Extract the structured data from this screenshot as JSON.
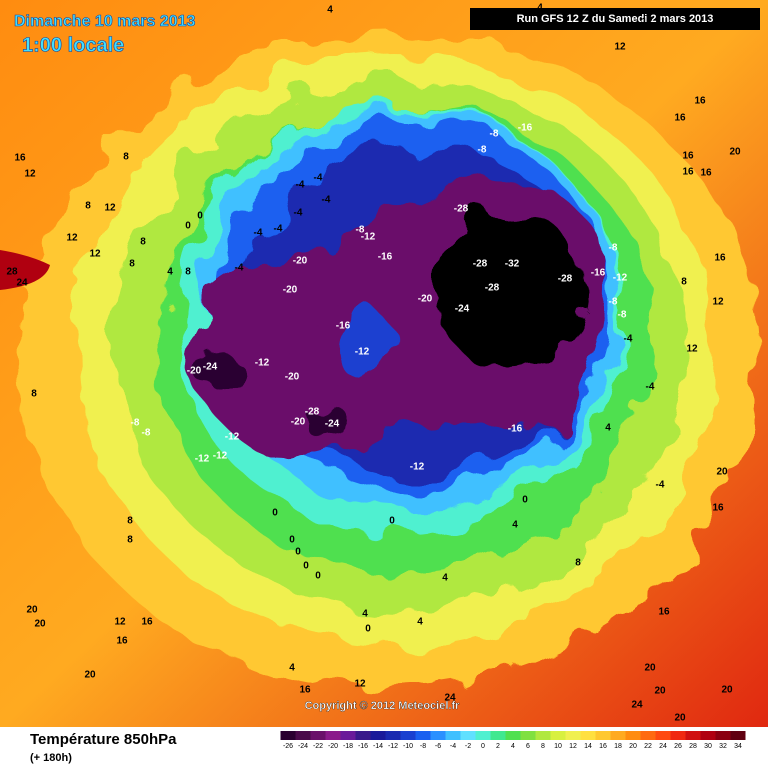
{
  "header": {
    "date": "Dimanche 10 mars 2013",
    "time": "1:00 locale",
    "run": "Run GFS 12 Z du Samedi 2 mars 2013"
  },
  "copyright": "Copyright © 2012 Meteociel.fr",
  "footer": {
    "title": "Température 850hPa",
    "lead": "(+ 180h)"
  },
  "scale": {
    "ticks": [
      -26,
      -24,
      -22,
      -20,
      -18,
      -16,
      -14,
      -12,
      -10,
      -8,
      -6,
      -4,
      -2,
      0,
      2,
      4,
      6,
      8,
      10,
      12,
      14,
      16,
      18,
      20,
      22,
      24,
      26,
      28,
      30,
      32,
      34
    ],
    "colors": [
      "#2a0030",
      "#4a0a4a",
      "#6a106a",
      "#8a1a8a",
      "#6a1a9a",
      "#3a1a8a",
      "#1a1a9a",
      "#1a2ab0",
      "#1a40d0",
      "#1a60f0",
      "#2a90ff",
      "#40c0ff",
      "#60e0ff",
      "#50f0d0",
      "#40e890",
      "#50e050",
      "#80e040",
      "#b0e840",
      "#d8f040",
      "#f0f050",
      "#ffe040",
      "#ffc830",
      "#ffaa20",
      "#ff8c10",
      "#ff6a10",
      "#ff4a10",
      "#f02810",
      "#d01010",
      "#b00010",
      "#8a0010",
      "#600010"
    ]
  },
  "map": {
    "contour_labels": [
      4,
      4,
      12,
      12,
      16,
      16,
      20,
      16,
      16,
      16,
      16,
      12,
      8,
      12,
      8,
      12,
      12,
      28,
      24,
      8,
      4,
      8,
      8,
      0,
      0,
      -4,
      -4,
      -4,
      -4,
      -4,
      -4,
      -4,
      -8,
      -12,
      -16,
      -20,
      -20,
      -16,
      -12,
      -20,
      -24,
      -12,
      -20,
      -28,
      -20,
      -24,
      -8,
      -8,
      -16,
      -28,
      -28,
      -32,
      -28,
      -28,
      -20,
      -24,
      -16,
      -12,
      -8,
      -8,
      -8,
      -4,
      -4,
      -16,
      -12,
      -8,
      -8,
      -12,
      -12,
      -12,
      0,
      0,
      0,
      0,
      0,
      0,
      0,
      4,
      -4,
      16,
      8,
      12,
      12,
      20,
      16,
      4,
      8,
      8,
      20,
      20,
      12,
      16,
      16,
      20,
      4,
      4,
      0,
      4,
      4,
      8,
      16,
      20,
      20,
      24,
      24,
      12,
      16,
      20,
      20,
      8
    ]
  }
}
